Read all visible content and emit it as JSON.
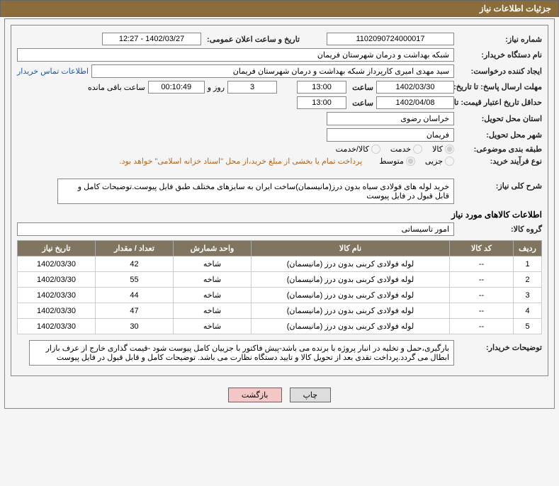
{
  "colors": {
    "header_bg": "#8a6d3b",
    "header_fg": "#ffffff",
    "table_header_bg": "#807560",
    "border": "#888888",
    "link": "#1555b5",
    "note": "#b5651d",
    "btn_back_bg": "#f4c7c7"
  },
  "panel_title": "جزئیات اطلاعات نیاز",
  "row1": {
    "need_no_label": "شماره نیاز:",
    "need_no": "1102090724000017",
    "announce_label": "تاریخ و ساعت اعلان عمومی:",
    "announce_val": "1402/03/27 - 12:27"
  },
  "row2": {
    "buyer_label": "نام دستگاه خریدار:",
    "buyer_val": "شبکه بهداشت و درمان شهرستان فریمان"
  },
  "row3": {
    "creator_label": "ایجاد کننده درخواست:",
    "creator_val": "سید مهدی امیری کارپرداز شبکه بهداشت و درمان شهرستان فریمان",
    "contact_link": "اطلاعات تماس خریدار"
  },
  "row4": {
    "deadline_label": "مهلت ارسال پاسخ: تا تاریخ:",
    "deadline_date": "1402/03/30",
    "time_label": "ساعت",
    "deadline_time": "13:00",
    "days_val": "3",
    "days_and": "روز و",
    "countdown": "00:10:49",
    "remaining": "ساعت باقی مانده"
  },
  "row5": {
    "validity_label": "حداقل تاریخ اعتبار قیمت: تا تاریخ:",
    "validity_date": "1402/04/08",
    "time_label": "ساعت",
    "validity_time": "13:00"
  },
  "row6": {
    "province_label": "استان محل تحویل:",
    "province_val": "خراسان رضوی"
  },
  "row7": {
    "city_label": "شهر محل تحویل:",
    "city_val": "فریمان"
  },
  "row8": {
    "cat_label": "طبقه بندی موضوعی:",
    "opt_goods": "کالا",
    "opt_service": "خدمت",
    "opt_both": "کالا/خدمت"
  },
  "row9": {
    "proc_label": "نوع فرآیند خرید:",
    "opt_small": "جزیی",
    "opt_medium": "متوسط",
    "proc_note": "پرداخت تمام یا بخشی از مبلغ خرید،از محل \"اسناد خزانه اسلامی\" خواهد بود."
  },
  "desc": {
    "label": "شرح کلی نیاز:",
    "text": "خرید لوله های فولادی سیاه بدون درز(مانیسمان)ساخت ایران به سایزهای مختلف طبق فایل پیوست.توضیحات کامل و قابل قبول در فایل پیوست"
  },
  "items_section": "اطلاعات کالاهای مورد نیاز",
  "group": {
    "label": "گروه کالا:",
    "val": "امور تاسیساتی"
  },
  "table": {
    "headers": [
      "ردیف",
      "کد کالا",
      "نام کالا",
      "واحد شمارش",
      "تعداد / مقدار",
      "تاریخ نیاز"
    ],
    "rows": [
      [
        "1",
        "--",
        "لوله فولادی کربنی بدون درز (مانیسمان)",
        "شاخه",
        "42",
        "1402/03/30"
      ],
      [
        "2",
        "--",
        "لوله فولادی کربنی بدون درز (مانیسمان)",
        "شاخه",
        "55",
        "1402/03/30"
      ],
      [
        "3",
        "--",
        "لوله فولادی کربنی بدون درز (مانیسمان)",
        "شاخه",
        "44",
        "1402/03/30"
      ],
      [
        "4",
        "--",
        "لوله فولادی کربنی بدون درز (مانیسمان)",
        "شاخه",
        "47",
        "1402/03/30"
      ],
      [
        "5",
        "--",
        "لوله فولادی کربنی بدون درز (مانیسمان)",
        "شاخه",
        "30",
        "1402/03/30"
      ]
    ]
  },
  "buyer_notes": {
    "label": "توضیحات خریدار:",
    "text": "بارگیری،حمل  و تخلیه در انبار پروژه با برنده می باشد-پیش فاکتور با جزییان کامل پیوست شود -قیمت گذاری خارج از عرف بازار ابطال می گردد.پرداخت تقدی بعد از تحویل کالا و تایید دستگاه نظارت می باشد. توضیحات کامل و قابل قبول در فایل پیوست"
  },
  "buttons": {
    "print": "چاپ",
    "back": "بازگشت"
  }
}
